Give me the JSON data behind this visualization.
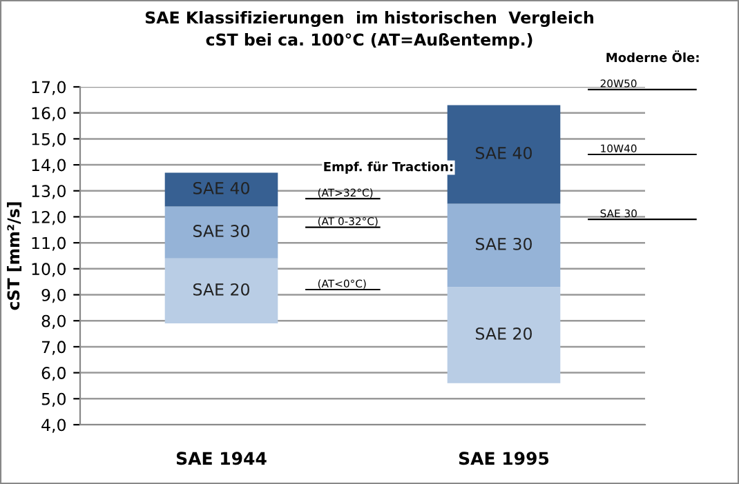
{
  "chart_data": {
    "type": "bar",
    "title": "SAE Klassifizierungen  im historischen  Vergleich\ncST bei ca. 100°C (AT=Außentemp.)",
    "ylabel": "cST [mm²/s]",
    "categories": [
      "SAE 1944",
      "SAE 1995"
    ],
    "series": [
      {
        "name": "SAE 20",
        "color": "#b9cde5",
        "base": [
          7.9,
          5.6
        ],
        "values": [
          2.5,
          3.7
        ]
      },
      {
        "name": "SAE 30",
        "color": "#95b3d7",
        "base": [
          10.4,
          9.3
        ],
        "values": [
          2.0,
          3.2
        ]
      },
      {
        "name": "SAE 40",
        "color": "#376092",
        "base": [
          12.4,
          12.5
        ],
        "values": [
          1.3,
          3.8
        ]
      }
    ],
    "ylim": [
      4,
      17
    ],
    "yticks": [
      {
        "value": 4,
        "label": "4,0"
      },
      {
        "value": 5,
        "label": "5,0"
      },
      {
        "value": 6,
        "label": "6,0"
      },
      {
        "value": 7,
        "label": "7,0"
      },
      {
        "value": 8,
        "label": "8,0"
      },
      {
        "value": 9,
        "label": "9,0"
      },
      {
        "value": 10,
        "label": "10,0"
      },
      {
        "value": 11,
        "label": "11,0"
      },
      {
        "value": 12,
        "label": "12,0"
      },
      {
        "value": 13,
        "label": "13,0"
      },
      {
        "value": 14,
        "label": "14,0"
      },
      {
        "value": 15,
        "label": "15,0"
      },
      {
        "value": 16,
        "label": "16,0"
      },
      {
        "value": 17,
        "label": "17,0"
      }
    ],
    "grid": "y",
    "legend": false,
    "annotations": [
      "Empf. für Traction:",
      "Moderne Öle:"
    ],
    "ref_lines": [
      {
        "axis": "y",
        "value": 12.7,
        "label": "(AT>32°C)"
      },
      {
        "axis": "y",
        "value": 11.6,
        "label": "(AT 0-32°C)"
      },
      {
        "axis": "y",
        "value": 9.2,
        "label": "(AT<0°C)"
      },
      {
        "axis": "y",
        "value": 16.9,
        "label": "20W50"
      },
      {
        "axis": "y",
        "value": 14.4,
        "label": "10W40"
      },
      {
        "axis": "y",
        "value": 11.9,
        "label": "SAE 30"
      }
    ]
  }
}
